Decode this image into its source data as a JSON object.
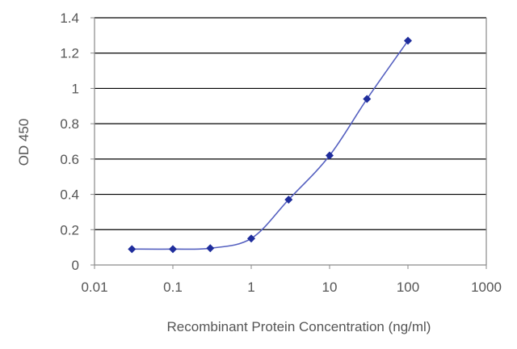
{
  "chart_data": {
    "type": "scatter",
    "title": "",
    "xlabel": "Recombinant Protein Concentration (ng/ml)",
    "ylabel": "OD 450",
    "xscale": "log",
    "xlim": [
      0.01,
      1000
    ],
    "ylim": [
      0,
      1.4
    ],
    "grid": "horizontal",
    "legend": "none",
    "xticks": [
      0.01,
      0.1,
      1,
      10,
      100,
      1000
    ],
    "xtick_labels": [
      "0.01",
      "0.1",
      "1",
      "10",
      "100",
      "1000"
    ],
    "yticks": [
      0,
      0.2,
      0.4,
      0.6,
      0.8,
      1,
      1.2,
      1.4
    ],
    "ytick_labels": [
      "0",
      "0.2",
      "0.4",
      "0.6",
      "0.8",
      "1",
      "1.2",
      "1.4"
    ],
    "series": [
      {
        "x": [
          0.03,
          0.1,
          0.3,
          1,
          3,
          10,
          30,
          100
        ],
        "y": [
          0.09,
          0.09,
          0.095,
          0.15,
          0.37,
          0.62,
          0.94,
          1.27
        ],
        "color": "#1f2d9c",
        "line_color": "#5560c0",
        "marker": "diamond"
      }
    ],
    "colors": {
      "gridline": "#000000",
      "axis": "#8a8a8a",
      "text": "#555555"
    }
  }
}
